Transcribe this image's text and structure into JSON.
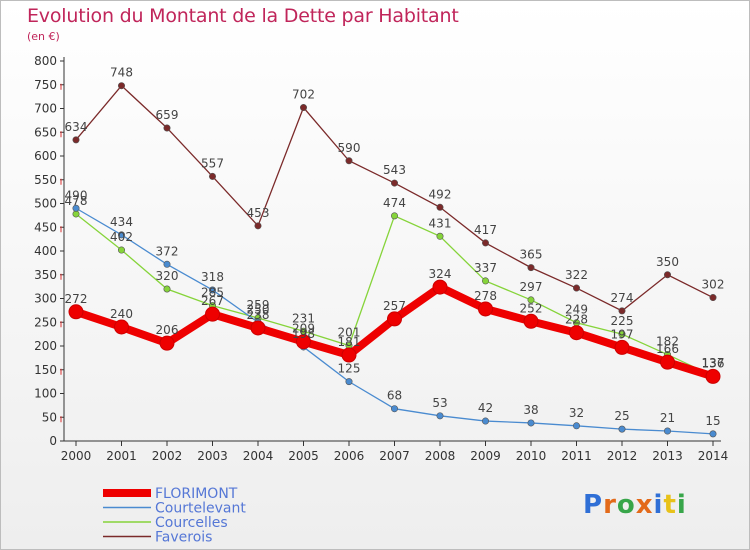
{
  "header": {
    "title": "Evolution du Montant de la Dette par Habitant",
    "subtitle": "(en €)"
  },
  "brand": {
    "logo_text": "Proxiti",
    "letter_colors": [
      "#2f6fd6",
      "#e36a1a",
      "#38a64a",
      "#e36a1a",
      "#2f6fd6",
      "#e8c21a",
      "#38a64a"
    ]
  },
  "chart_data": {
    "type": "line",
    "title": "Evolution du Montant de la Dette par Habitant",
    "subtitle": "(en €)",
    "xlabel": "",
    "ylabel": "",
    "x": [
      "2000",
      "2001",
      "2002",
      "2003",
      "2004",
      "2005",
      "2006",
      "2007",
      "2008",
      "2009",
      "2010",
      "2011",
      "2012",
      "2013",
      "2014"
    ],
    "ylim": [
      0,
      800
    ],
    "yticks": [
      0,
      50,
      100,
      150,
      200,
      250,
      300,
      350,
      400,
      450,
      500,
      550,
      600,
      650,
      700,
      750,
      800
    ],
    "grid": false,
    "legend_position": "bottom-left",
    "series": [
      {
        "name": "FLORIMONT",
        "color": "#ee0000",
        "emphasis": true,
        "values": [
          272,
          240,
          206,
          267,
          238,
          209,
          181,
          257,
          324,
          278,
          252,
          228,
          197,
          166,
          136
        ],
        "labels": [
          "272",
          "240",
          "206",
          "267",
          "238",
          "209",
          "181",
          "257",
          "324",
          "278",
          "252",
          "228",
          "197",
          "166",
          "136"
        ]
      },
      {
        "name": "Courtelevant",
        "color": "#4a8bd0",
        "values": [
          490,
          434,
          372,
          318,
          250,
          198,
          125,
          68,
          53,
          42,
          38,
          32,
          25,
          21,
          15
        ],
        "labels": [
          "490",
          "434",
          "372",
          "318",
          "250",
          "198",
          "125",
          "68",
          "53",
          "42",
          "38",
          "32",
          "25",
          "21",
          "15"
        ]
      },
      {
        "name": "Courcelles",
        "color": "#86d43a",
        "values": [
          478,
          402,
          320,
          285,
          259,
          231,
          201,
          474,
          431,
          337,
          297,
          249,
          225,
          182,
          137
        ],
        "labels": [
          "478",
          "402",
          "320",
          "285",
          "259",
          "231",
          "201",
          "474",
          "431",
          "337",
          "297",
          "249",
          "225",
          "182",
          "137"
        ]
      },
      {
        "name": "Faverois",
        "color": "#7b2a2a",
        "values": [
          634,
          748,
          659,
          557,
          453,
          702,
          590,
          543,
          492,
          417,
          365,
          322,
          274,
          350,
          302
        ],
        "labels": [
          "634",
          "748",
          "659",
          "557",
          "453",
          "702",
          "590",
          "543",
          "492",
          "417",
          "365",
          "322",
          "274",
          "350",
          "302"
        ]
      }
    ]
  }
}
